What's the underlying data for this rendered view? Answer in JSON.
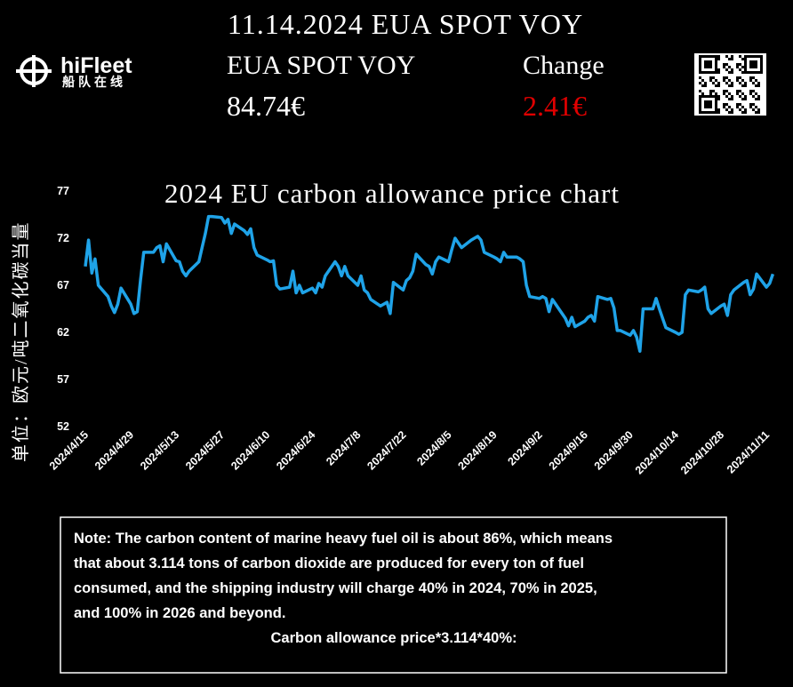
{
  "header": {
    "title": "11.14.2024 EUA SPOT VOY",
    "price_label": "EUA SPOT VOY",
    "price": "84.74€",
    "change_label": "Change",
    "change": "2.41€"
  },
  "logo": {
    "name": "hiFleet",
    "subtitle": "船队在线"
  },
  "note": {
    "lines": [
      "Note: The carbon content of marine heavy fuel oil is about 86%, which means",
      "that about 3.114 tons of carbon dioxide are produced for every ton of fuel",
      "consumed, and the shipping industry will charge 40% in 2024, 70% in 2025,",
      "and 100% in 2026 and beyond."
    ],
    "formula": "Carbon allowance price*3.114*40%:"
  },
  "chart_data": {
    "type": "line",
    "title": "2024 EU carbon allowance price chart",
    "y_label": "单位：欧元/吨二氧化碳当量",
    "color": "#1fa3e8",
    "x": [
      "2024/4/15",
      "2024/4/16",
      "2024/4/17",
      "2024/4/18",
      "2024/4/19",
      "2024/4/22",
      "2024/4/23",
      "2024/4/24",
      "2024/4/25",
      "2024/4/26",
      "2024/4/29",
      "2024/4/30",
      "2024/5/1",
      "2024/5/2",
      "2024/5/3",
      "2024/5/6",
      "2024/5/7",
      "2024/5/8",
      "2024/5/9",
      "2024/5/10",
      "2024/5/13",
      "2024/5/14",
      "2024/5/15",
      "2024/5/16",
      "2024/5/17",
      "2024/5/20",
      "2024/5/21",
      "2024/5/22",
      "2024/5/23",
      "2024/5/24",
      "2024/5/27",
      "2024/5/28",
      "2024/5/29",
      "2024/5/30",
      "2024/5/31",
      "2024/6/3",
      "2024/6/4",
      "2024/6/5",
      "2024/6/6",
      "2024/6/7",
      "2024/6/10",
      "2024/6/11",
      "2024/6/12",
      "2024/6/13",
      "2024/6/14",
      "2024/6/17",
      "2024/6/18",
      "2024/6/19",
      "2024/6/20",
      "2024/6/21",
      "2024/6/24",
      "2024/6/25",
      "2024/6/26",
      "2024/6/27",
      "2024/6/28",
      "2024/7/1",
      "2024/7/2",
      "2024/7/3",
      "2024/7/4",
      "2024/7/5",
      "2024/7/8",
      "2024/7/9",
      "2024/7/10",
      "2024/7/11",
      "2024/7/12",
      "2024/7/15",
      "2024/7/16",
      "2024/7/17",
      "2024/7/18",
      "2024/7/19",
      "2024/7/22",
      "2024/7/23",
      "2024/7/24",
      "2024/7/25",
      "2024/7/26",
      "2024/7/29",
      "2024/7/30",
      "2024/7/31",
      "2024/8/1",
      "2024/8/2",
      "2024/8/5",
      "2024/8/6",
      "2024/8/7",
      "2024/8/8",
      "2024/8/9",
      "2024/8/12",
      "2024/8/13",
      "2024/8/14",
      "2024/8/15",
      "2024/8/16",
      "2024/8/19",
      "2024/8/20",
      "2024/8/21",
      "2024/8/22",
      "2024/8/23",
      "2024/8/26",
      "2024/8/27",
      "2024/8/28",
      "2024/8/29",
      "2024/8/30",
      "2024/9/2",
      "2024/9/3",
      "2024/9/4",
      "2024/9/5",
      "2024/9/6",
      "2024/9/9",
      "2024/9/10",
      "2024/9/11",
      "2024/9/12",
      "2024/9/13",
      "2024/9/16",
      "2024/9/17",
      "2024/9/18",
      "2024/9/19",
      "2024/9/20",
      "2024/9/23",
      "2024/9/24",
      "2024/9/25",
      "2024/9/26",
      "2024/9/27",
      "2024/9/30",
      "2024/10/1",
      "2024/10/2",
      "2024/10/3",
      "2024/10/4",
      "2024/10/7",
      "2024/10/8",
      "2024/10/9",
      "2024/10/10",
      "2024/10/11",
      "2024/10/14",
      "2024/10/15",
      "2024/10/16",
      "2024/10/17",
      "2024/10/18",
      "2024/10/21",
      "2024/10/22",
      "2024/10/23",
      "2024/10/24",
      "2024/10/25",
      "2024/10/28",
      "2024/10/29",
      "2024/10/30",
      "2024/10/31",
      "2024/11/1",
      "2024/11/4",
      "2024/11/5",
      "2024/11/6",
      "2024/11/7",
      "2024/11/8",
      "2024/11/11",
      "2024/11/12",
      "2024/11/13"
    ],
    "values": [
      69.0,
      71.8,
      68.3,
      69.8,
      67.0,
      65.8,
      64.8,
      64.1,
      65.0,
      66.7,
      65.0,
      64.0,
      64.2,
      67.5,
      70.5,
      70.5,
      71.0,
      71.2,
      69.5,
      71.4,
      69.6,
      69.5,
      68.5,
      68.0,
      68.5,
      69.5,
      71.0,
      72.5,
      74.3,
      74.3,
      74.2,
      73.6,
      74.0,
      72.5,
      73.5,
      72.8,
      72.4,
      73.0,
      71.0,
      70.2,
      69.7,
      69.5,
      69.6,
      67.0,
      66.6,
      66.8,
      68.5,
      66.2,
      67.0,
      66.2,
      66.7,
      66.2,
      67.2,
      66.8,
      68.0,
      69.5,
      69.0,
      68.0,
      69.0,
      68.0,
      67.0,
      68.0,
      66.5,
      66.2,
      65.5,
      64.8,
      65.0,
      65.2,
      64.0,
      67.3,
      66.5,
      67.5,
      67.8,
      68.5,
      70.3,
      69.2,
      69.0,
      68.2,
      69.5,
      70.0,
      69.5,
      70.8,
      72.0,
      71.5,
      71.0,
      71.8,
      72.0,
      72.2,
      71.8,
      70.5,
      70.0,
      69.8,
      69.5,
      70.5,
      70.0,
      70.0,
      69.8,
      69.5,
      67.0,
      65.8,
      65.6,
      65.8,
      65.6,
      64.2,
      65.5,
      64.0,
      63.5,
      62.7,
      63.6,
      62.6,
      63.2,
      63.6,
      63.8,
      63.2,
      65.8,
      65.5,
      65.6,
      64.6,
      62.2,
      62.2,
      61.7,
      62.2,
      61.5,
      60.0,
      64.5,
      64.5,
      65.6,
      64.5,
      63.5,
      62.5,
      62.0,
      61.8,
      62.0,
      66.0,
      66.5,
      66.3,
      66.5,
      66.8,
      64.5,
      64.0,
      64.8,
      65.0,
      63.8,
      66.0,
      66.5,
      67.3,
      67.5,
      66.0,
      66.6,
      68.2,
      66.8,
      67.2,
      68.2
    ],
    "xlim": [
      "2024/4/15",
      "2024/11/14"
    ],
    "xticks": [
      "2024/4/15",
      "2024/4/29",
      "2024/5/13",
      "2024/5/27",
      "2024/6/10",
      "2024/6/24",
      "2024/7/8",
      "2024/7/22",
      "2024/8/5",
      "2024/8/19",
      "2024/9/2",
      "2024/9/16",
      "2024/9/30",
      "2024/10/14",
      "2024/10/28",
      "2024/11/11"
    ],
    "ylim": [
      52,
      77
    ],
    "yticks": [
      52,
      57,
      62,
      67,
      72,
      77
    ],
    "grid": false
  }
}
